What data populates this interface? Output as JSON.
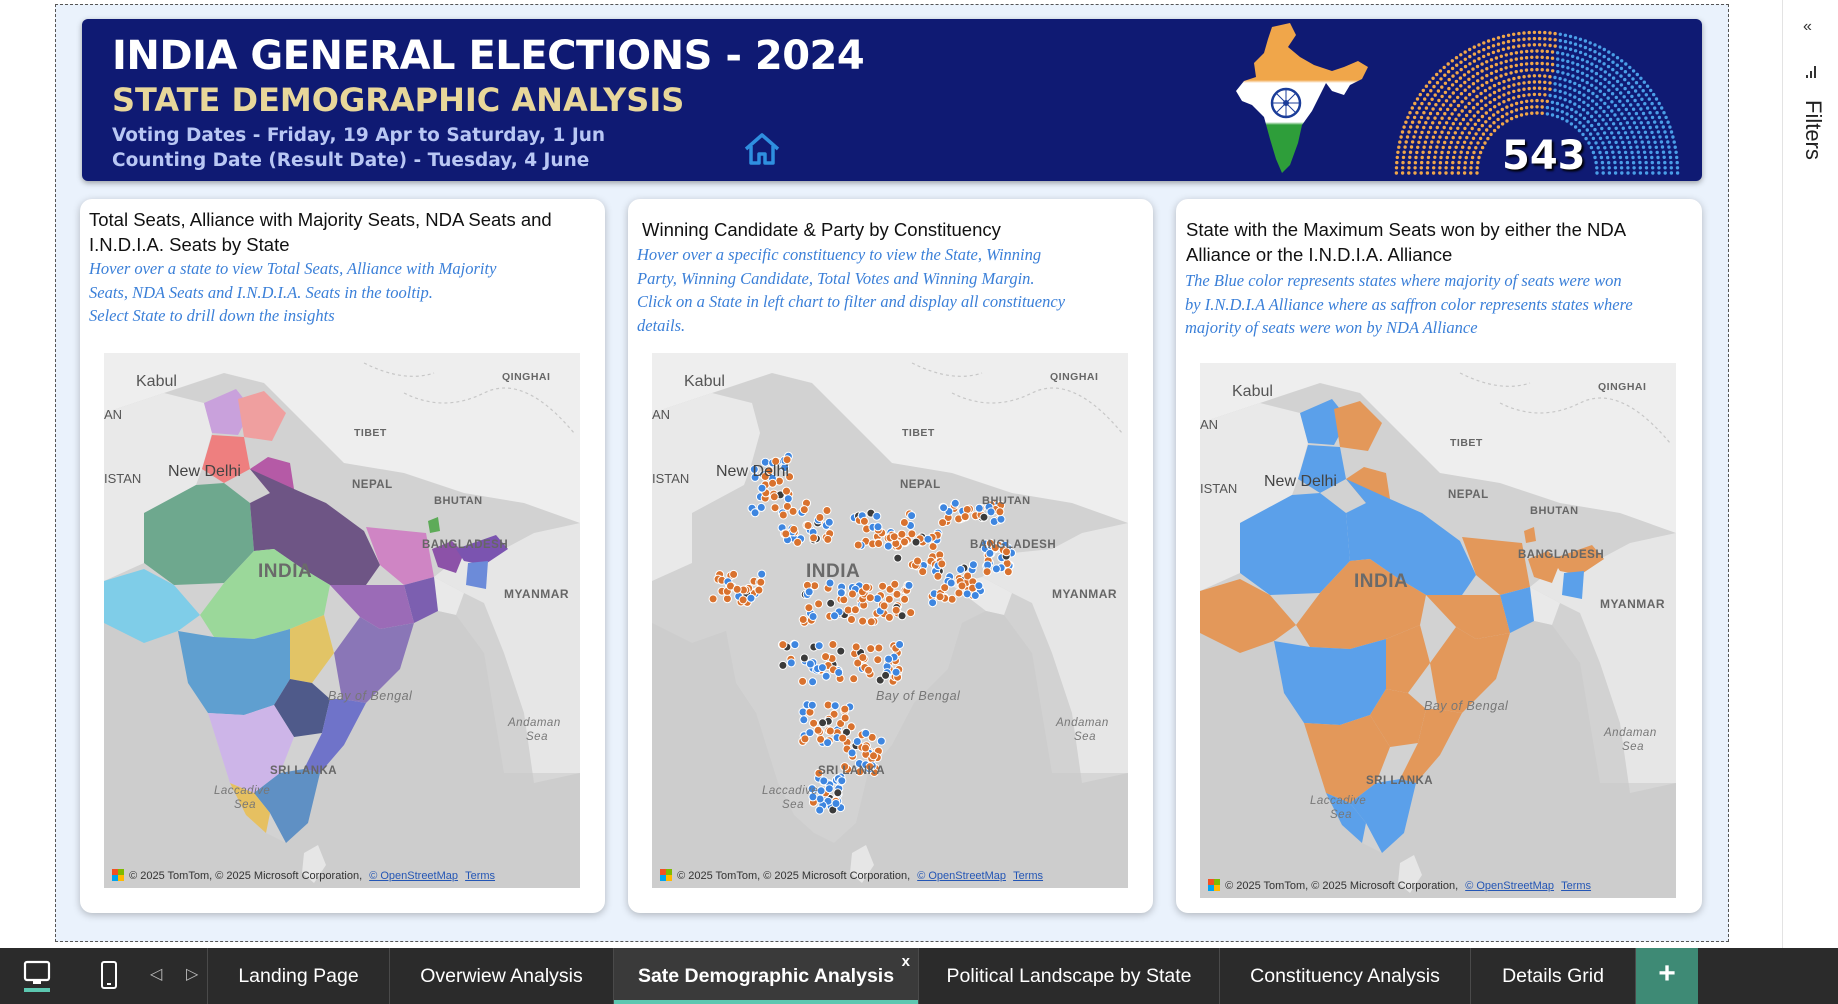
{
  "banner": {
    "title": "INDIA GENERAL ELECTIONS - 2024",
    "subtitle": "STATE DEMOGRAPHIC ANALYSIS",
    "voting_dates": "Voting Dates - Friday, 19 Apr to Saturday, 1 Jun",
    "counting_date": "Counting Date (Result Date) - Tuesday, 4 June",
    "seat_total": "543",
    "colors": {
      "background": "#0f1a73",
      "saffron": "#f0a64a",
      "blue": "#4a9ee8"
    }
  },
  "cards": [
    {
      "title": "Total Seats, Alliance with Majority Seats, NDA Seats and I.N.D.I.A. Seats by State",
      "description": [
        "Hover over a state to view Total Seats, Alliance with Majority",
        "Seats, NDA Seats and I.N.D.I.A. Seats in the tooltip.",
        "Select State to drill down the insights"
      ]
    },
    {
      "title": "Winning Candidate & Party by Constituency",
      "description": [
        "Hover over a specific constituency to  view the State, Winning",
        "Party, Winning Candidate, Total Votes and Winning Margin.",
        "Click on a State in left chart  to filter and display all constituency",
        "details."
      ]
    },
    {
      "title": "State with the Maximum Seats won by either the NDA Alliance or the I.N.D.I.A. Alliance",
      "description": [
        "The Blue color represents states where majority of seats were won",
        "by I.N.D.I.A Alliance where as saffron color represents states where",
        "majority of seats were won by NDA Alliance"
      ]
    }
  ],
  "map_labels": {
    "kabul": "Kabul",
    "qinghai": "QINGHAI",
    "tibet": "TIBET",
    "istan": "ISTAN",
    "an": "AN",
    "new_delhi": "New Delhi",
    "nepal": "NEPAL",
    "bhutan": "BHUTAN",
    "bangladesh": "BANGLADESH",
    "india": "INDIA",
    "myanmar": "MYANMAR",
    "bay_of_bengal": "Bay of Bengal",
    "andaman_sea_1": "Andaman",
    "andaman_sea_2": "Sea",
    "sri_lanka": "SRI LANKA",
    "laccadive": "Laccadive",
    "sea": "Sea"
  },
  "map_credit": {
    "text": "© 2025 TomTom, © 2025 Microsoft Corporation,",
    "osm_link": "© OpenStreetMap",
    "terms_link": "Terms",
    "logo_text": "Microsoft"
  },
  "filters": {
    "label": "Filters",
    "collapse_icon": "double-chevron-left-icon"
  },
  "tabs": [
    {
      "label": "Landing Page",
      "active": false
    },
    {
      "label": "Overwiew Analysis",
      "active": false
    },
    {
      "label": "Sate Demographic Analysis",
      "active": true
    },
    {
      "label": "Political Landscape by State",
      "active": false
    },
    {
      "label": "Constituency Analysis",
      "active": false
    },
    {
      "label": "Details Grid",
      "active": false
    }
  ],
  "tab_close_glyph": "x",
  "add_tab_glyph": "+"
}
